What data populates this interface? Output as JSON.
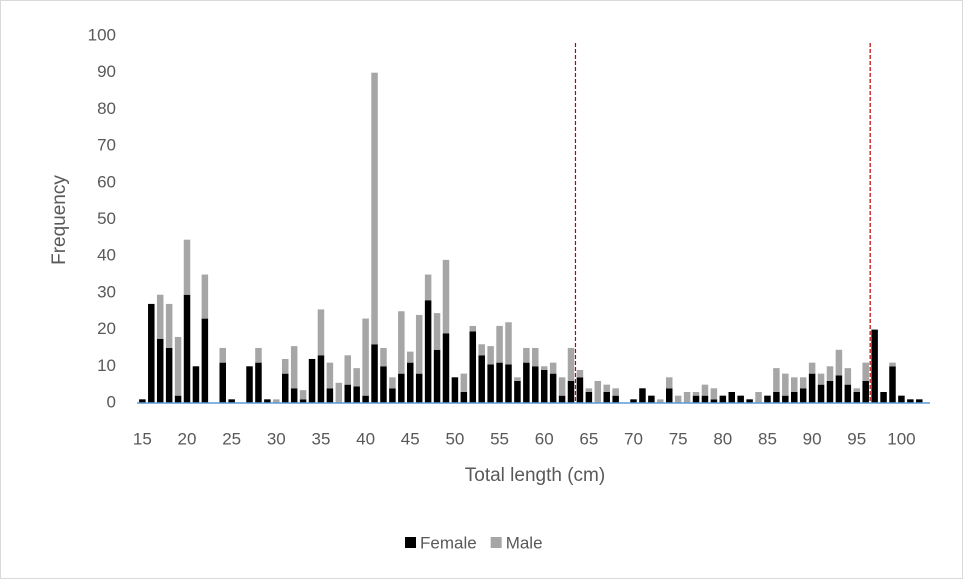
{
  "chart_data": {
    "type": "bar",
    "stacked": true,
    "x_label": "Total length (cm)",
    "y_label": "Frequency",
    "x": [
      15,
      16,
      17,
      18,
      19,
      20,
      21,
      22,
      23,
      24,
      25,
      26,
      27,
      28,
      29,
      30,
      31,
      32,
      33,
      34,
      35,
      36,
      37,
      38,
      39,
      40,
      41,
      42,
      43,
      44,
      45,
      46,
      47,
      48,
      49,
      50,
      51,
      52,
      53,
      54,
      55,
      56,
      57,
      58,
      59,
      60,
      61,
      62,
      63,
      64,
      65,
      66,
      67,
      68,
      69,
      70,
      71,
      72,
      73,
      74,
      75,
      76,
      77,
      78,
      79,
      80,
      81,
      82,
      83,
      84,
      85,
      86,
      87,
      88,
      89,
      90,
      91,
      92,
      93,
      94,
      95,
      96,
      97,
      98,
      99,
      100,
      101,
      102
    ],
    "series": [
      {
        "name": "Female",
        "color": "#000000",
        "values": [
          1,
          27,
          17.5,
          15,
          2,
          29.5,
          10,
          23,
          0,
          11,
          1,
          0,
          10,
          11,
          1,
          0,
          8,
          4,
          1,
          12,
          13,
          4,
          0,
          5,
          4.5,
          2,
          16,
          10,
          4,
          8,
          11,
          8,
          28,
          14.5,
          19,
          7,
          3,
          19.5,
          13,
          10.5,
          11,
          10.5,
          6,
          11,
          10,
          9,
          8,
          2,
          6,
          7,
          3,
          0,
          3,
          2,
          0,
          1,
          4,
          2,
          0,
          4,
          0,
          0,
          2,
          2,
          1,
          2,
          3,
          2,
          1,
          0,
          2,
          3,
          2,
          3,
          4,
          8,
          5,
          6,
          7.5,
          5,
          3,
          6,
          20,
          3,
          10,
          2,
          1,
          1
        ]
      },
      {
        "name": "Male",
        "color": "#a6a6a6",
        "values": [
          0,
          0,
          12,
          12,
          16,
          15,
          0,
          12,
          0,
          4,
          0,
          0,
          0,
          4,
          0,
          1,
          4,
          11.5,
          2.5,
          0,
          12.5,
          7,
          5.5,
          8,
          5,
          21,
          74,
          5,
          3,
          17,
          3,
          16,
          7,
          10,
          20,
          0,
          5,
          1.5,
          3,
          5,
          10,
          11.5,
          1,
          4,
          5,
          1,
          3,
          5,
          9,
          2,
          1,
          6,
          2,
          2,
          0,
          0,
          0,
          0,
          1,
          3,
          2,
          3,
          1,
          3,
          3,
          0,
          0,
          0,
          0,
          3,
          0,
          6.5,
          6,
          4,
          3,
          3,
          3,
          4,
          7,
          4.5,
          1,
          5,
          0,
          0,
          1,
          0,
          0,
          0
        ]
      }
    ],
    "xlim": [
      14.4,
      103.2
    ],
    "xticks": [
      15,
      20,
      25,
      30,
      35,
      40,
      45,
      50,
      55,
      60,
      65,
      70,
      75,
      80,
      85,
      90,
      95,
      100
    ],
    "ylim": [
      0,
      100
    ],
    "yticks": [
      0,
      10,
      20,
      30,
      40,
      50,
      60,
      70,
      80,
      90,
      100
    ],
    "reference_lines": {
      "color": "#c00000",
      "values": [
        63.5,
        96.5
      ]
    },
    "legend": "bottom"
  }
}
